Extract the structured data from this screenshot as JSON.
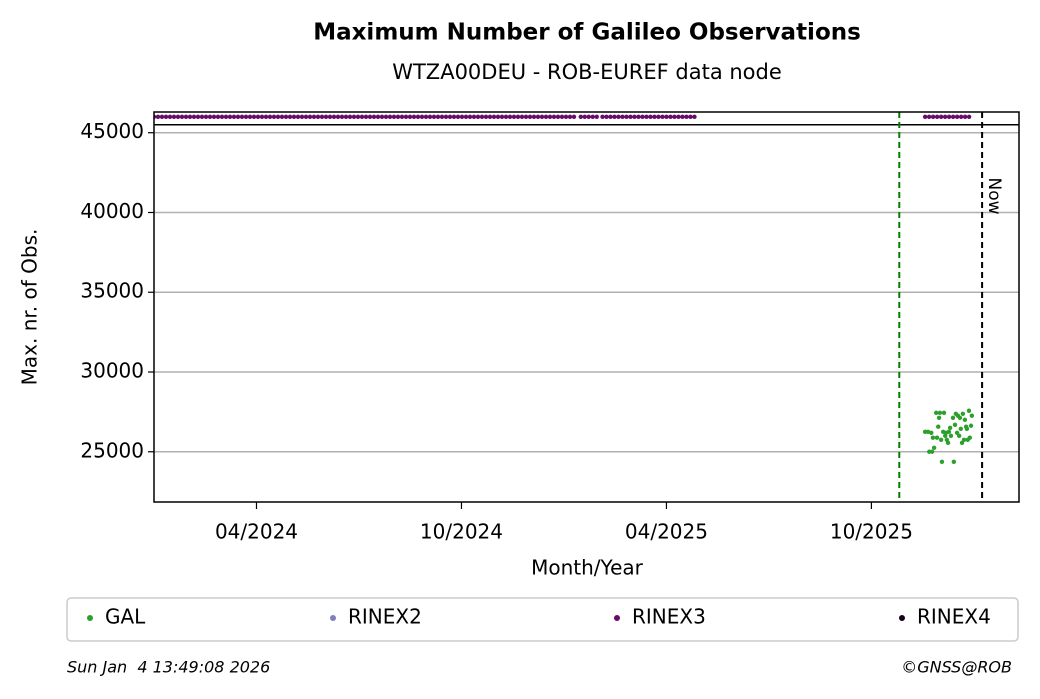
{
  "chart_data": {
    "type": "scatter",
    "title": "Maximum Number of Galileo Observations",
    "subtitle": "WTZA00DEU - ROB-EUREF data node",
    "x_label": "Month/Year",
    "y_label": "Max. nr. of Obs.",
    "xlim": [
      2024.0,
      2026.11
    ],
    "ylim": [
      21850,
      46300
    ],
    "xticks": [
      {
        "value": 2024.25,
        "label": "04/2024"
      },
      {
        "value": 2024.75,
        "label": "10/2024"
      },
      {
        "value": 2025.25,
        "label": "04/2025"
      },
      {
        "value": 2025.75,
        "label": "10/2025"
      }
    ],
    "yticks": [
      25000,
      30000,
      35000,
      40000,
      45000
    ],
    "grid": true,
    "series": [
      {
        "name": "GAL",
        "color": "#2ca02c",
        "type": "scatter",
        "x": [
          2025.881,
          2025.888,
          2025.896,
          2025.891,
          2025.898,
          2025.9,
          2025.903,
          2025.908,
          2025.91,
          2025.913,
          2025.915,
          2025.917,
          2025.92,
          2025.922,
          2025.925,
          2025.927,
          2025.93,
          2025.932,
          2025.934,
          2025.937,
          2025.939,
          2025.942,
          2025.944,
          2025.949,
          2025.951,
          2025.954,
          2025.956,
          2025.959,
          2025.961,
          2025.964,
          2025.966,
          2025.968,
          2025.971,
          2025.973,
          2025.976,
          2025.978,
          2025.981,
          2025.983,
          2025.985,
          2025.988,
          2025.99,
          2025.995,
          2025.993
        ],
        "values": [
          26250,
          26250,
          26190,
          25000,
          25000,
          25880,
          25250,
          27440,
          25880,
          26570,
          27130,
          27440,
          25750,
          24370,
          26250,
          27440,
          26000,
          26190,
          25750,
          25560,
          26250,
          26500,
          26000,
          27130,
          24370,
          26690,
          27380,
          26190,
          27260,
          26000,
          27130,
          26440,
          25560,
          27380,
          25750,
          27000,
          26570,
          26440,
          25750,
          27570,
          25880,
          27260,
          26630
        ]
      },
      {
        "name": "RINEX2",
        "color": "#7f7fbf",
        "type": "scatter",
        "x": [],
        "values": []
      },
      {
        "name": "RINEX3",
        "color": "#6a0a6a",
        "type": "line",
        "x": [
          2024.0,
          2025.029,
          null,
          2025.041,
          2025.087,
          null,
          2025.094,
          2025.328,
          null,
          2025.881,
          2025.997
        ],
        "values": [
          46000,
          46000,
          null,
          46000,
          46000,
          null,
          46000,
          46000,
          null,
          46000,
          46000
        ]
      },
      {
        "name": "RINEX4",
        "color": "#1a0020",
        "type": "scatter",
        "x": [],
        "values": []
      }
    ],
    "hlines": [
      {
        "y": 45500,
        "color": "#000000"
      }
    ],
    "vlines": [
      {
        "x": 2025.818,
        "color": "#007f00"
      },
      {
        "x": 2026.02,
        "color": "#000000",
        "label": "Now"
      }
    ],
    "legend": "bottom",
    "footer_left": "Sun Jan  4 13:49:08 2026",
    "footer_right": "©GNSS@ROB"
  }
}
